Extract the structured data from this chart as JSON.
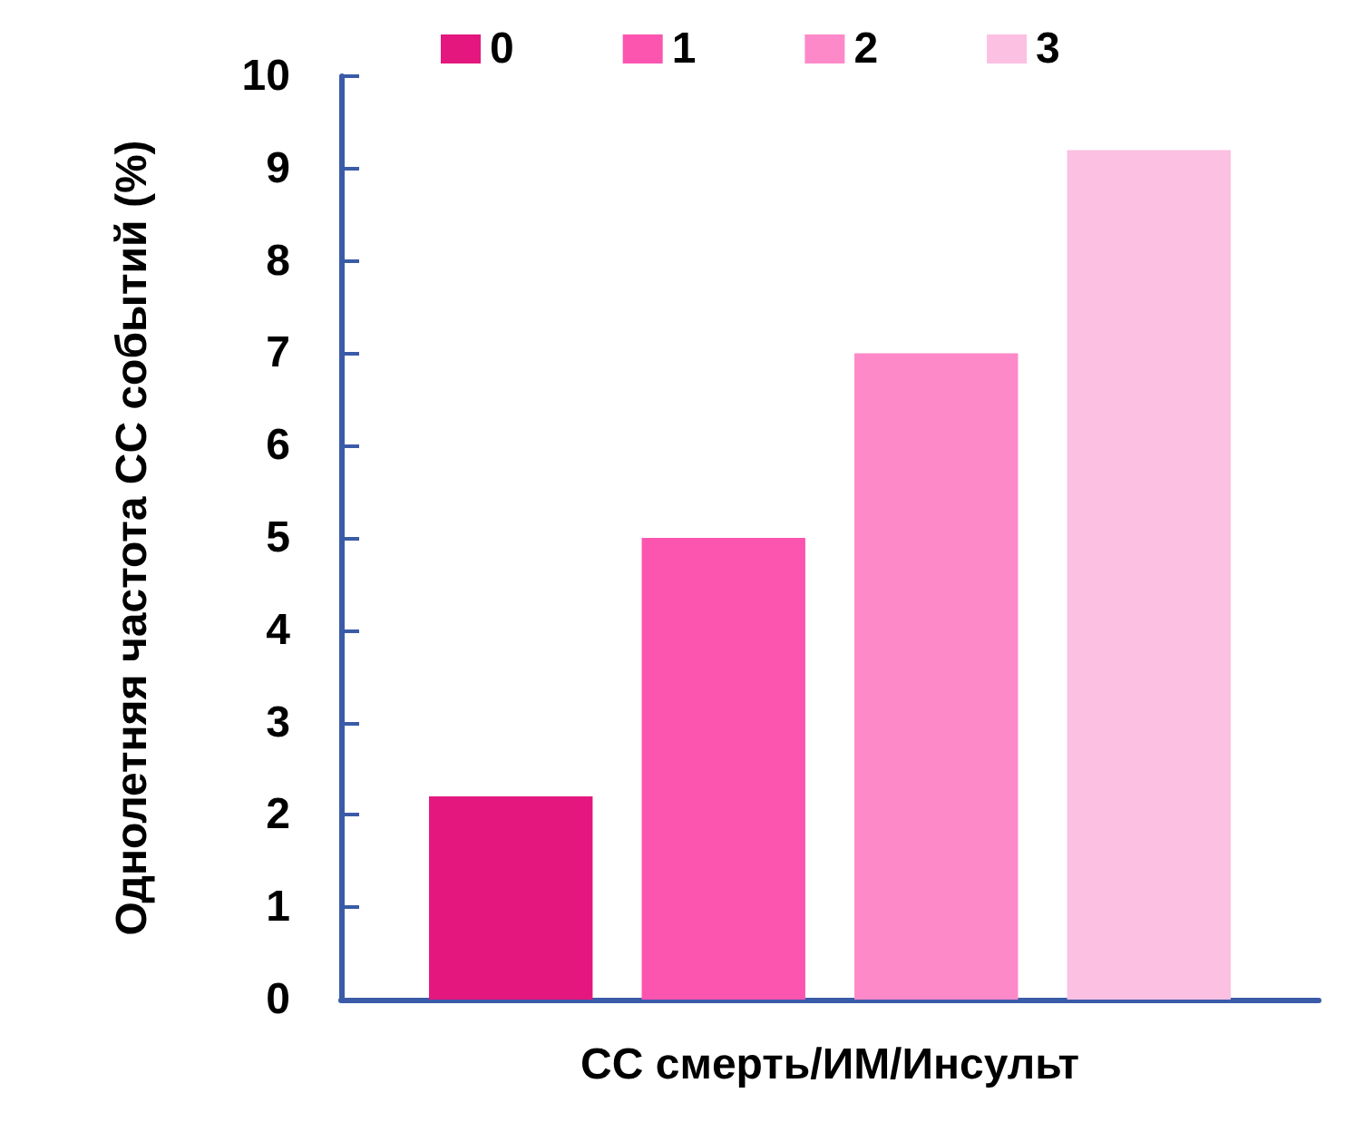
{
  "chart_data": {
    "type": "bar",
    "ylabel": "Однолетняя частота СС событий (%)",
    "categories": [
      "СС смерть/ИМ/Инсульт"
    ],
    "series": [
      {
        "name": "0",
        "color": "#e4177f",
        "values": [
          2.2
        ]
      },
      {
        "name": "1",
        "color": "#fb55b0",
        "values": [
          5.0
        ]
      },
      {
        "name": "2",
        "color": "#fd89c9",
        "values": [
          7.0
        ]
      },
      {
        "name": "3",
        "color": "#fbc0e2",
        "values": [
          9.2
        ]
      }
    ],
    "ylim": [
      0,
      10
    ],
    "yticks": [
      0,
      1,
      2,
      3,
      4,
      5,
      6,
      7,
      8,
      9,
      10
    ],
    "grid": false,
    "legend": "top"
  }
}
